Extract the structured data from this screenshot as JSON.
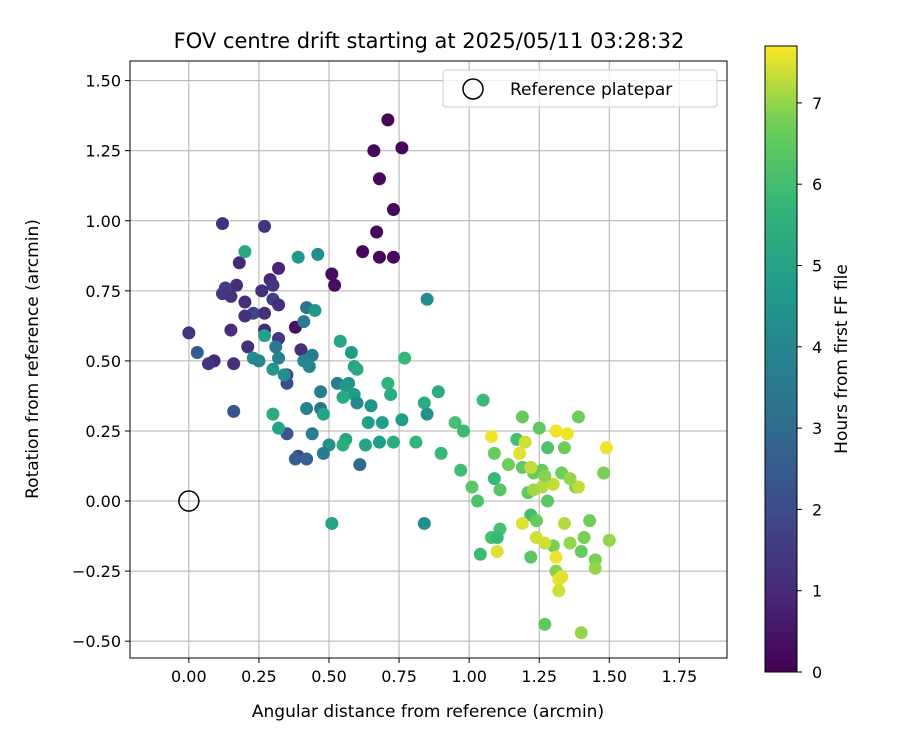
{
  "chart_data": {
    "type": "scatter",
    "title": "FOV centre drift starting at 2025/05/11 03:28:32",
    "xlabel": "Angular distance from reference (arcmin)",
    "ylabel": "Rotation from reference (arcmin)",
    "xlim": [
      -0.21,
      1.92
    ],
    "ylim": [
      -0.56,
      1.57
    ],
    "x_ticks": [
      "0.00",
      "0.25",
      "0.50",
      "0.75",
      "1.00",
      "1.25",
      "1.50",
      "1.75"
    ],
    "y_ticks": [
      "−0.50",
      "−0.25",
      "0.00",
      "0.25",
      "0.50",
      "0.75",
      "1.00",
      "1.25",
      "1.50"
    ],
    "grid": true,
    "legend": {
      "placement": "top-right",
      "entries": [
        "Reference platepar"
      ]
    },
    "reference_point": {
      "x": 0.0,
      "y": 0.0,
      "marker": "open-circle"
    },
    "colorbar": {
      "label": "Hours from first FF file",
      "colormap": "viridis",
      "range": [
        0,
        7.7
      ],
      "ticks": [
        "0",
        "1",
        "2",
        "3",
        "4",
        "5",
        "6",
        "7"
      ]
    },
    "points": [
      {
        "x": 0.71,
        "y": 1.36,
        "c": 0.2
      },
      {
        "x": 0.76,
        "y": 1.26,
        "c": 0.2
      },
      {
        "x": 0.66,
        "y": 1.25,
        "c": 0.2
      },
      {
        "x": 0.68,
        "y": 1.15,
        "c": 0.2
      },
      {
        "x": 0.73,
        "y": 1.04,
        "c": 0.2
      },
      {
        "x": 0.67,
        "y": 0.96,
        "c": 0.2
      },
      {
        "x": 0.62,
        "y": 0.89,
        "c": 0.2
      },
      {
        "x": 0.68,
        "y": 0.87,
        "c": 0.2
      },
      {
        "x": 0.73,
        "y": 0.87,
        "c": 0.2
      },
      {
        "x": 0.51,
        "y": 0.81,
        "c": 0.3
      },
      {
        "x": 0.52,
        "y": 0.77,
        "c": 0.3
      },
      {
        "x": 0.38,
        "y": 0.62,
        "c": 0.4
      },
      {
        "x": 0.12,
        "y": 0.99,
        "c": 1.2
      },
      {
        "x": 0.27,
        "y": 0.98,
        "c": 1.3
      },
      {
        "x": 0.18,
        "y": 0.85,
        "c": 1.0
      },
      {
        "x": 0.32,
        "y": 0.83,
        "c": 0.9
      },
      {
        "x": 0.29,
        "y": 0.79,
        "c": 1.0
      },
      {
        "x": 0.3,
        "y": 0.77,
        "c": 1.4
      },
      {
        "x": 0.17,
        "y": 0.77,
        "c": 1.1
      },
      {
        "x": 0.13,
        "y": 0.76,
        "c": 1.6
      },
      {
        "x": 0.26,
        "y": 0.75,
        "c": 1.2
      },
      {
        "x": 0.12,
        "y": 0.74,
        "c": 1.5
      },
      {
        "x": 0.15,
        "y": 0.73,
        "c": 1.3
      },
      {
        "x": 0.3,
        "y": 0.72,
        "c": 1.7
      },
      {
        "x": 0.2,
        "y": 0.71,
        "c": 1.1
      },
      {
        "x": 0.32,
        "y": 0.7,
        "c": 1.2
      },
      {
        "x": 0.23,
        "y": 0.67,
        "c": 1.8
      },
      {
        "x": 0.27,
        "y": 0.67,
        "c": 1.2
      },
      {
        "x": 0.2,
        "y": 0.66,
        "c": 1.3
      },
      {
        "x": 0.15,
        "y": 0.61,
        "c": 1.1
      },
      {
        "x": 0.27,
        "y": 0.61,
        "c": 1.0
      },
      {
        "x": 0.0,
        "y": 0.6,
        "c": 1.3
      },
      {
        "x": 0.32,
        "y": 0.58,
        "c": 1.4
      },
      {
        "x": 0.21,
        "y": 0.55,
        "c": 1.2
      },
      {
        "x": 0.4,
        "y": 0.54,
        "c": 1.1
      },
      {
        "x": 0.03,
        "y": 0.53,
        "c": 2.5
      },
      {
        "x": 0.09,
        "y": 0.5,
        "c": 1.0
      },
      {
        "x": 0.07,
        "y": 0.49,
        "c": 1.3
      },
      {
        "x": 0.16,
        "y": 0.49,
        "c": 1.2
      },
      {
        "x": 0.35,
        "y": 0.45,
        "c": 2.0
      },
      {
        "x": 0.35,
        "y": 0.42,
        "c": 2.1
      },
      {
        "x": 0.16,
        "y": 0.32,
        "c": 2.3
      },
      {
        "x": 0.35,
        "y": 0.24,
        "c": 2.3
      },
      {
        "x": 0.39,
        "y": 0.16,
        "c": 2.0
      },
      {
        "x": 0.38,
        "y": 0.15,
        "c": 2.6
      },
      {
        "x": 0.42,
        "y": 0.15,
        "c": 2.8
      },
      {
        "x": 0.2,
        "y": 0.89,
        "c": 5.2
      },
      {
        "x": 0.39,
        "y": 0.87,
        "c": 4.6
      },
      {
        "x": 0.46,
        "y": 0.88,
        "c": 4.3
      },
      {
        "x": 0.42,
        "y": 0.69,
        "c": 3.4
      },
      {
        "x": 0.45,
        "y": 0.68,
        "c": 4.6
      },
      {
        "x": 0.41,
        "y": 0.64,
        "c": 3.6
      },
      {
        "x": 0.27,
        "y": 0.59,
        "c": 5.0
      },
      {
        "x": 0.31,
        "y": 0.55,
        "c": 3.5
      },
      {
        "x": 0.44,
        "y": 0.52,
        "c": 3.7
      },
      {
        "x": 0.23,
        "y": 0.51,
        "c": 4.3
      },
      {
        "x": 0.32,
        "y": 0.51,
        "c": 3.8
      },
      {
        "x": 0.25,
        "y": 0.5,
        "c": 4.0
      },
      {
        "x": 0.41,
        "y": 0.5,
        "c": 4.0
      },
      {
        "x": 0.43,
        "y": 0.48,
        "c": 4.0
      },
      {
        "x": 0.3,
        "y": 0.47,
        "c": 4.6
      },
      {
        "x": 0.34,
        "y": 0.45,
        "c": 4.3
      },
      {
        "x": 0.47,
        "y": 0.39,
        "c": 3.6
      },
      {
        "x": 0.53,
        "y": 0.42,
        "c": 3.6
      },
      {
        "x": 0.58,
        "y": 0.53,
        "c": 4.7
      },
      {
        "x": 0.54,
        "y": 0.57,
        "c": 5.1
      },
      {
        "x": 0.59,
        "y": 0.48,
        "c": 5.0
      },
      {
        "x": 0.6,
        "y": 0.47,
        "c": 5.2
      },
      {
        "x": 0.57,
        "y": 0.42,
        "c": 4.4
      },
      {
        "x": 0.56,
        "y": 0.41,
        "c": 4.6
      },
      {
        "x": 0.59,
        "y": 0.38,
        "c": 4.8
      },
      {
        "x": 0.55,
        "y": 0.37,
        "c": 5.3
      },
      {
        "x": 0.6,
        "y": 0.35,
        "c": 4.1
      },
      {
        "x": 0.65,
        "y": 0.34,
        "c": 4.4
      },
      {
        "x": 0.42,
        "y": 0.33,
        "c": 3.8
      },
      {
        "x": 0.47,
        "y": 0.33,
        "c": 3.3
      },
      {
        "x": 0.48,
        "y": 0.31,
        "c": 5.0
      },
      {
        "x": 0.3,
        "y": 0.31,
        "c": 5.4
      },
      {
        "x": 0.32,
        "y": 0.26,
        "c": 5.1
      },
      {
        "x": 0.44,
        "y": 0.24,
        "c": 3.7
      },
      {
        "x": 0.56,
        "y": 0.22,
        "c": 5.1
      },
      {
        "x": 0.55,
        "y": 0.2,
        "c": 5.4
      },
      {
        "x": 0.5,
        "y": 0.2,
        "c": 4.4
      },
      {
        "x": 0.48,
        "y": 0.17,
        "c": 3.6
      },
      {
        "x": 0.61,
        "y": 0.13,
        "c": 3.0
      },
      {
        "x": 0.64,
        "y": 0.28,
        "c": 4.9
      },
      {
        "x": 0.69,
        "y": 0.28,
        "c": 4.8
      },
      {
        "x": 0.63,
        "y": 0.2,
        "c": 5.1
      },
      {
        "x": 0.68,
        "y": 0.21,
        "c": 4.8
      },
      {
        "x": 0.73,
        "y": 0.21,
        "c": 5.4
      },
      {
        "x": 0.76,
        "y": 0.29,
        "c": 4.8
      },
      {
        "x": 0.71,
        "y": 0.42,
        "c": 5.6
      },
      {
        "x": 0.72,
        "y": 0.38,
        "c": 5.3
      },
      {
        "x": 0.77,
        "y": 0.51,
        "c": 5.8
      },
      {
        "x": 0.85,
        "y": 0.72,
        "c": 4.2
      },
      {
        "x": 0.84,
        "y": 0.35,
        "c": 5.3
      },
      {
        "x": 0.85,
        "y": 0.31,
        "c": 4.4
      },
      {
        "x": 0.81,
        "y": 0.21,
        "c": 5.7
      },
      {
        "x": 0.89,
        "y": 0.39,
        "c": 5.4
      },
      {
        "x": 0.51,
        "y": -0.08,
        "c": 5.0
      },
      {
        "x": 0.84,
        "y": -0.08,
        "c": 4.3
      },
      {
        "x": 0.9,
        "y": 0.17,
        "c": 5.8
      },
      {
        "x": 0.95,
        "y": 0.28,
        "c": 6.1
      },
      {
        "x": 0.98,
        "y": 0.25,
        "c": 5.9
      },
      {
        "x": 0.97,
        "y": 0.11,
        "c": 6.0
      },
      {
        "x": 1.01,
        "y": 0.05,
        "c": 6.4
      },
      {
        "x": 1.03,
        "y": 0.0,
        "c": 6.2
      },
      {
        "x": 1.05,
        "y": 0.36,
        "c": 5.9
      },
      {
        "x": 1.04,
        "y": -0.19,
        "c": 5.9
      },
      {
        "x": 1.08,
        "y": -0.13,
        "c": 6.1
      },
      {
        "x": 1.09,
        "y": 0.17,
        "c": 6.6
      },
      {
        "x": 1.09,
        "y": 0.08,
        "c": 5.8
      },
      {
        "x": 1.11,
        "y": 0.04,
        "c": 6.3
      },
      {
        "x": 1.11,
        "y": -0.1,
        "c": 6.1
      },
      {
        "x": 1.1,
        "y": -0.13,
        "c": 5.8
      },
      {
        "x": 1.14,
        "y": 0.13,
        "c": 6.7
      },
      {
        "x": 1.17,
        "y": 0.22,
        "c": 6.1
      },
      {
        "x": 1.19,
        "y": 0.3,
        "c": 6.6
      },
      {
        "x": 1.19,
        "y": 0.12,
        "c": 6.5
      },
      {
        "x": 1.21,
        "y": 0.03,
        "c": 6.5
      },
      {
        "x": 1.22,
        "y": -0.05,
        "c": 6.0
      },
      {
        "x": 1.22,
        "y": -0.2,
        "c": 6.4
      },
      {
        "x": 1.23,
        "y": 0.1,
        "c": 6.7
      },
      {
        "x": 1.24,
        "y": -0.07,
        "c": 6.6
      },
      {
        "x": 1.25,
        "y": 0.26,
        "c": 6.5
      },
      {
        "x": 1.26,
        "y": 0.11,
        "c": 6.6
      },
      {
        "x": 1.27,
        "y": -0.44,
        "c": 6.5
      },
      {
        "x": 1.28,
        "y": 0.19,
        "c": 6.2
      },
      {
        "x": 1.28,
        "y": 0.0,
        "c": 6.4
      },
      {
        "x": 1.3,
        "y": -0.16,
        "c": 6.8
      },
      {
        "x": 1.31,
        "y": -0.25,
        "c": 6.9
      },
      {
        "x": 1.33,
        "y": 0.1,
        "c": 6.7
      },
      {
        "x": 1.34,
        "y": 0.19,
        "c": 6.7
      },
      {
        "x": 1.36,
        "y": -0.15,
        "c": 7.0
      },
      {
        "x": 1.38,
        "y": 0.05,
        "c": 6.8
      },
      {
        "x": 1.39,
        "y": 0.3,
        "c": 6.7
      },
      {
        "x": 1.4,
        "y": -0.18,
        "c": 6.6
      },
      {
        "x": 1.4,
        "y": -0.47,
        "c": 7.0
      },
      {
        "x": 1.41,
        "y": -0.13,
        "c": 6.8
      },
      {
        "x": 1.43,
        "y": -0.07,
        "c": 6.7
      },
      {
        "x": 1.45,
        "y": -0.21,
        "c": 6.8
      },
      {
        "x": 1.45,
        "y": -0.24,
        "c": 7.0
      },
      {
        "x": 1.48,
        "y": 0.1,
        "c": 6.8
      },
      {
        "x": 1.5,
        "y": -0.14,
        "c": 7.0
      },
      {
        "x": 1.08,
        "y": 0.23,
        "c": 7.6
      },
      {
        "x": 1.1,
        "y": -0.18,
        "c": 7.5
      },
      {
        "x": 1.19,
        "y": -0.08,
        "c": 7.5
      },
      {
        "x": 1.18,
        "y": 0.17,
        "c": 7.5
      },
      {
        "x": 1.2,
        "y": 0.21,
        "c": 7.4
      },
      {
        "x": 1.22,
        "y": 0.12,
        "c": 7.3
      },
      {
        "x": 1.24,
        "y": -0.13,
        "c": 7.4
      },
      {
        "x": 1.26,
        "y": 0.05,
        "c": 7.2
      },
      {
        "x": 1.27,
        "y": -0.15,
        "c": 7.4
      },
      {
        "x": 1.3,
        "y": 0.06,
        "c": 7.3
      },
      {
        "x": 1.31,
        "y": 0.25,
        "c": 7.6
      },
      {
        "x": 1.31,
        "y": -0.2,
        "c": 7.6
      },
      {
        "x": 1.32,
        "y": -0.28,
        "c": 7.6
      },
      {
        "x": 1.32,
        "y": -0.32,
        "c": 7.4
      },
      {
        "x": 1.33,
        "y": -0.27,
        "c": 7.5
      },
      {
        "x": 1.34,
        "y": -0.08,
        "c": 7.2
      },
      {
        "x": 1.35,
        "y": 0.24,
        "c": 7.6
      },
      {
        "x": 1.39,
        "y": 0.05,
        "c": 7.3
      },
      {
        "x": 1.49,
        "y": 0.19,
        "c": 7.6
      },
      {
        "x": 1.36,
        "y": 0.08,
        "c": 7.0
      },
      {
        "x": 1.27,
        "y": 0.09,
        "c": 6.9
      },
      {
        "x": 1.23,
        "y": 0.04,
        "c": 7.1
      }
    ]
  }
}
